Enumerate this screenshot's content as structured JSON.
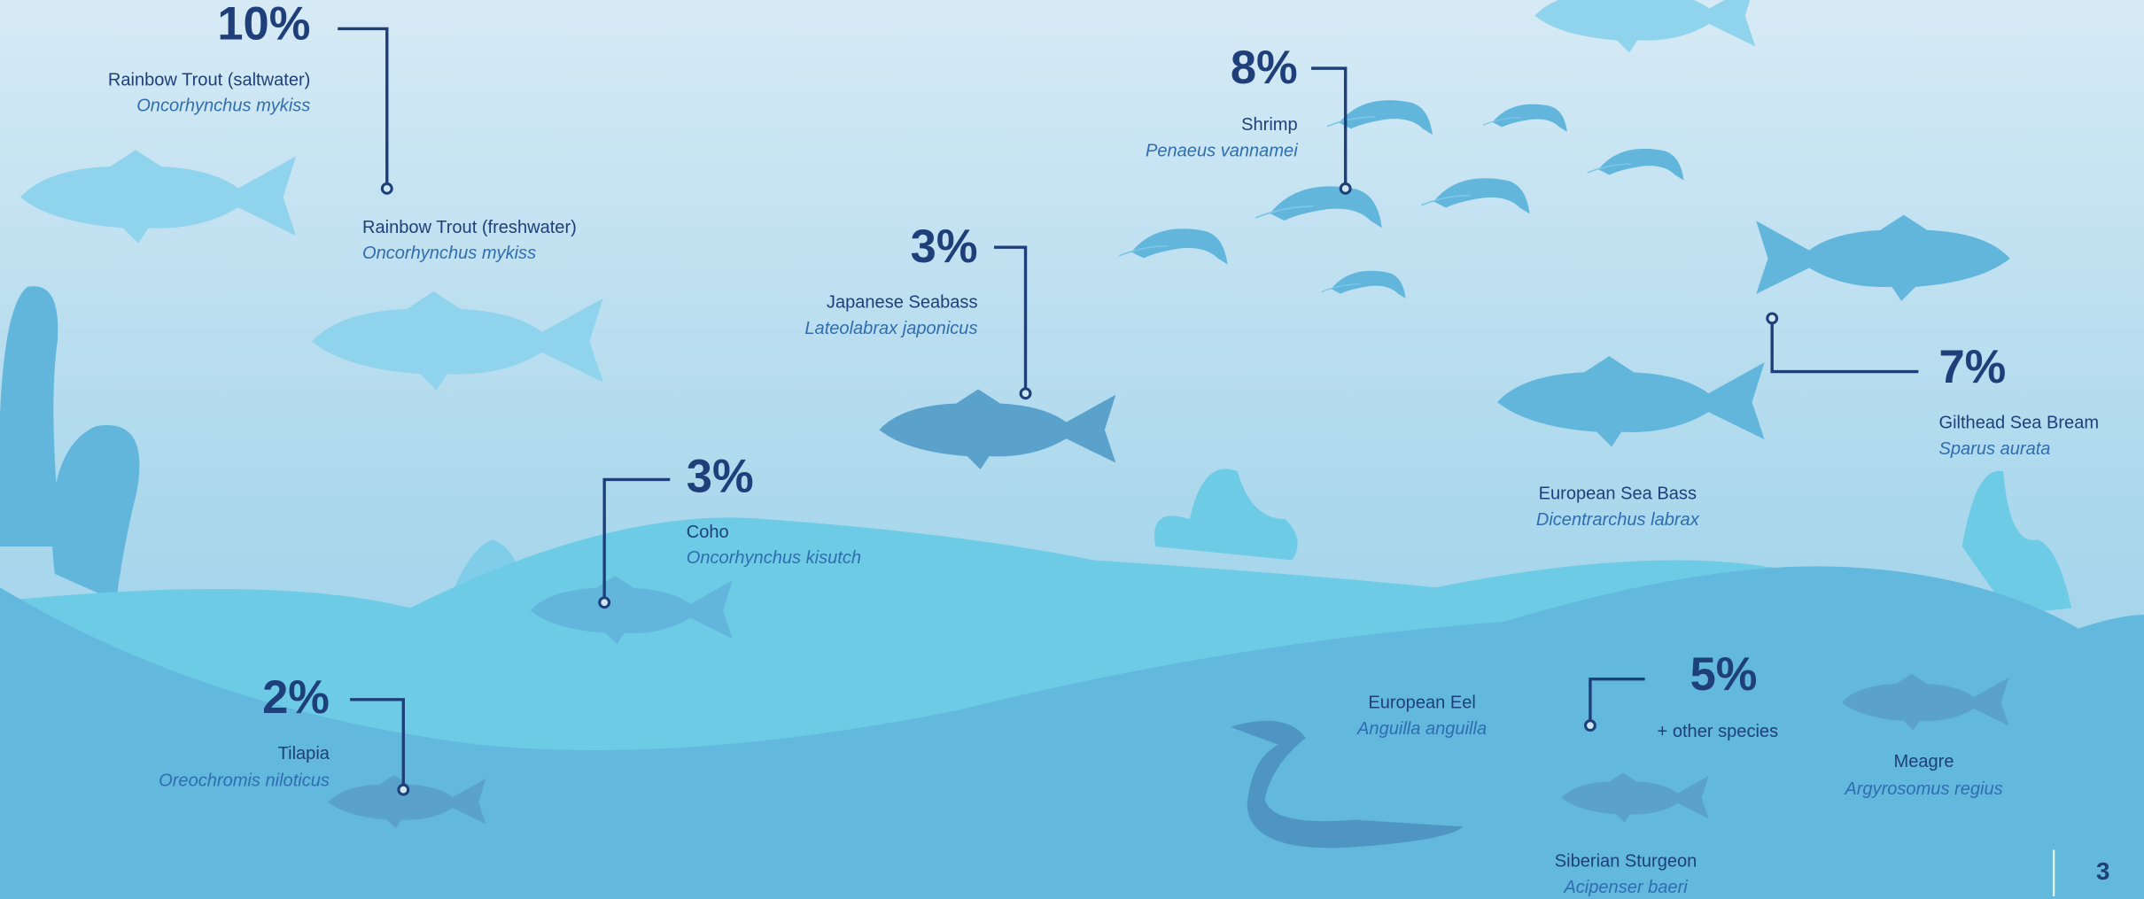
{
  "callouts": [
    {
      "percent": "10%",
      "species": [
        {
          "name": "Rainbow Trout (saltwater)",
          "latin": "Oncorhynchus mykiss"
        },
        {
          "name": "Rainbow Trout (freshwater)",
          "latin": "Oncorhynchus mykiss"
        }
      ]
    },
    {
      "percent": "8%",
      "species": [
        {
          "name": "Shrimp",
          "latin": "Penaeus vannamei"
        }
      ]
    },
    {
      "percent": "3%",
      "species": [
        {
          "name": "Japanese Seabass",
          "latin": "Lateolabrax japonicus"
        }
      ]
    },
    {
      "percent": "3%",
      "species": [
        {
          "name": "Coho",
          "latin": "Oncorhynchus kisutch"
        }
      ]
    },
    {
      "percent": "2%",
      "species": [
        {
          "name": "Tilapia",
          "latin": "Oreochromis niloticus"
        }
      ]
    },
    {
      "percent": "7%",
      "species": [
        {
          "name": "Gilthead Sea Bream",
          "latin": "Sparus aurata"
        }
      ]
    },
    {
      "percent": "5%",
      "note": "+ other species"
    }
  ],
  "species": [
    {
      "name": "European Sea Bass",
      "latin": "Dicentrarchus labrax"
    },
    {
      "name": "European Eel",
      "latin": "Anguilla anguilla"
    },
    {
      "name": "Meagre",
      "latin": "Argyrosomus regius"
    },
    {
      "name": "Siberian Sturgeon",
      "latin": "Acipenser baeri"
    }
  ],
  "page_number": "3"
}
